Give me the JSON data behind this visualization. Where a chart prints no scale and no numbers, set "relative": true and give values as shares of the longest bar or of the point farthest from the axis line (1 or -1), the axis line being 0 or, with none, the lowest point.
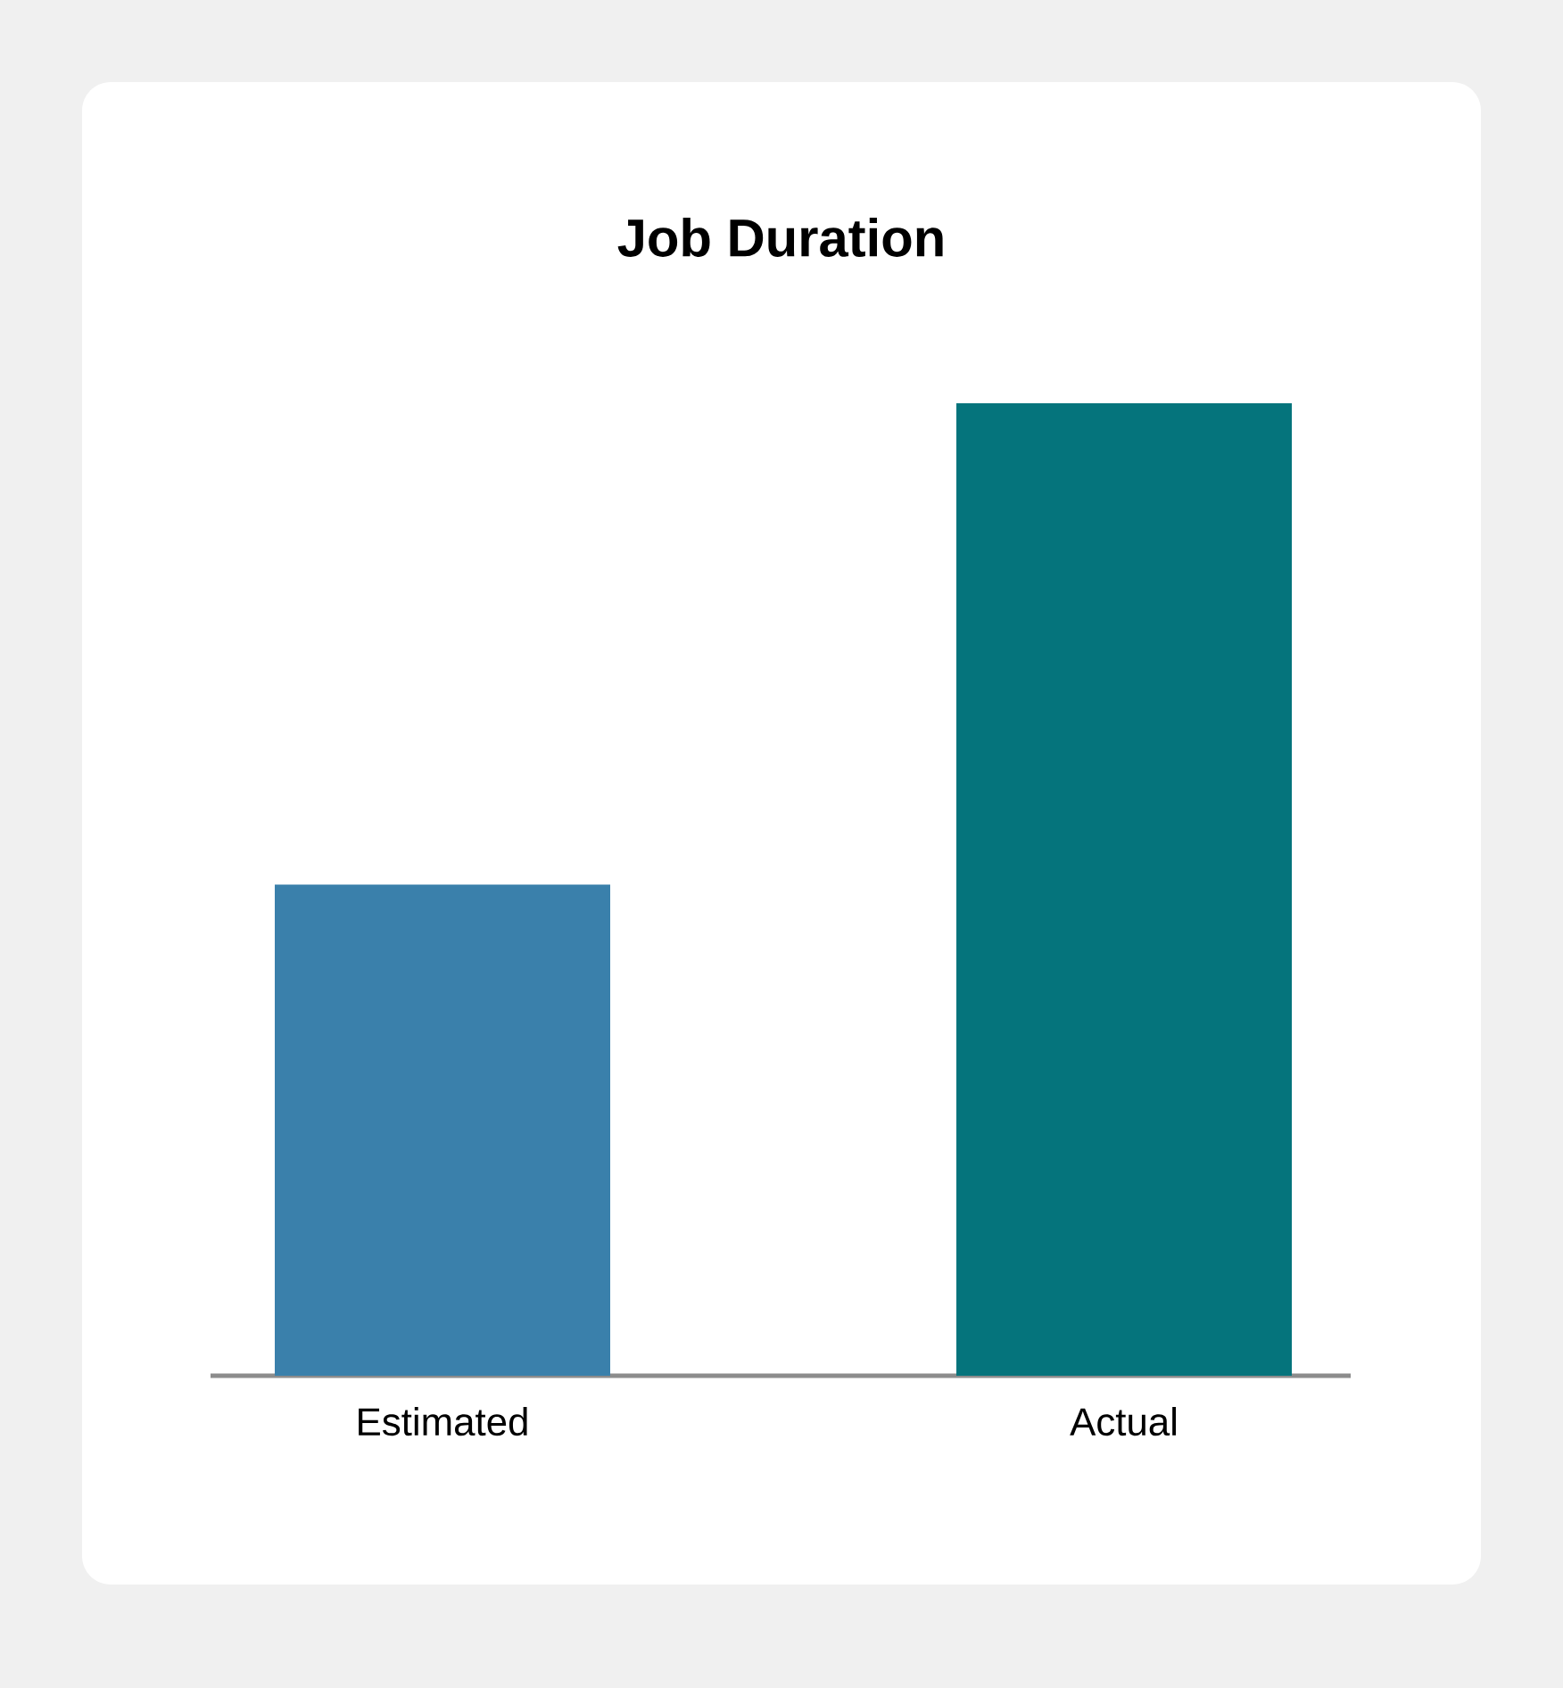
{
  "chart_data": {
    "type": "bar",
    "title": "Job Duration",
    "relative": true,
    "categories": [
      "Estimated",
      "Actual"
    ],
    "values": [
      0.505,
      1
    ],
    "colors": [
      "#3a80ab",
      "#05747c"
    ]
  }
}
